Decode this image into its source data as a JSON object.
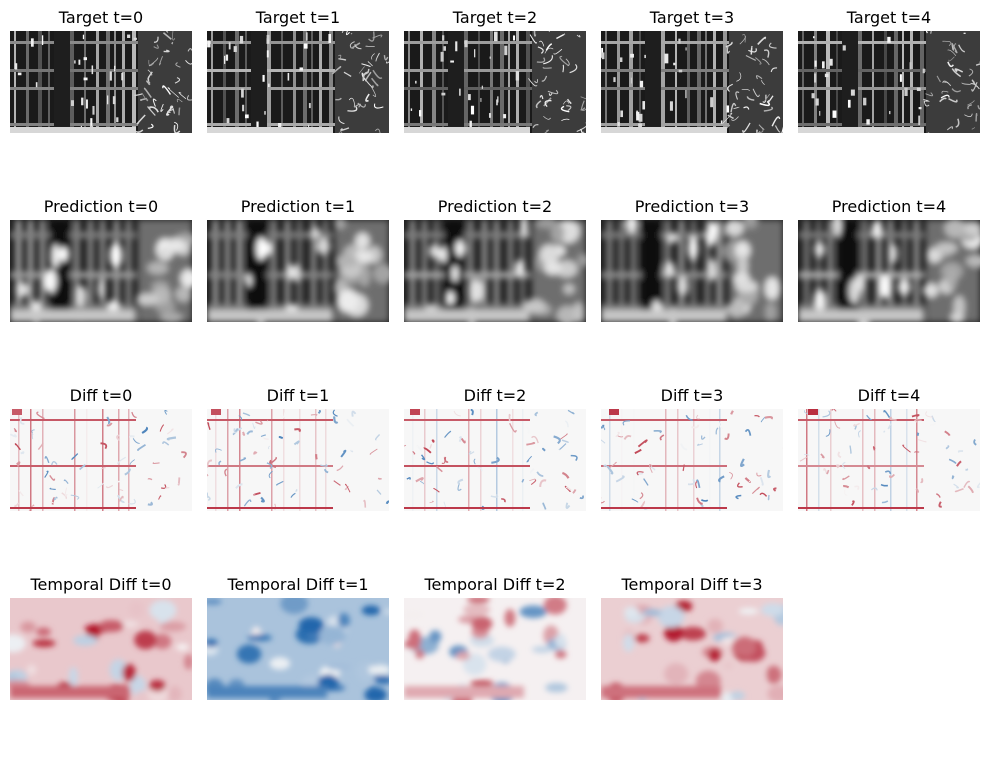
{
  "rows": [
    {
      "kind": "target",
      "titles": [
        "Target t=0",
        "Target t=1",
        "Target t=2",
        "Target t=3",
        "Target t=4"
      ]
    },
    {
      "kind": "prediction",
      "titles": [
        "Prediction t=0",
        "Prediction t=1",
        "Prediction t=2",
        "Prediction t=3",
        "Prediction t=4"
      ]
    },
    {
      "kind": "diff",
      "titles": [
        "Diff t=0",
        "Diff t=1",
        "Diff t=2",
        "Diff t=3",
        "Diff t=4"
      ]
    },
    {
      "kind": "temporal",
      "titles": [
        "Temporal Diff t=0",
        "Temporal Diff t=1",
        "Temporal Diff t=2",
        "Temporal Diff t=3"
      ]
    }
  ],
  "colors": {
    "background": "#ffffff",
    "grayscale_dark": "#1a1a1a",
    "grayscale_light": "#f2f2f2",
    "diverging_red": "#b2182b",
    "diverging_white": "#f7f7f7",
    "diverging_blue": "#2166ac"
  }
}
